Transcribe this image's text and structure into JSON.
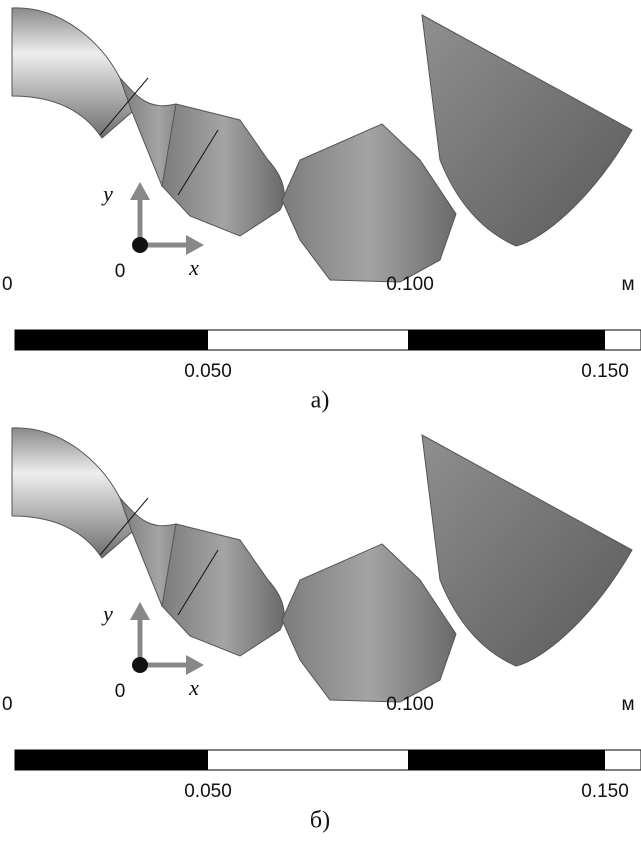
{
  "panels": [
    {
      "axes": {
        "y": "y",
        "origin": "0",
        "x": "x"
      },
      "scale": {
        "start": "0",
        "mid": "0.100",
        "unit": "м",
        "low": "0.050",
        "high": "0.150"
      },
      "caption": "а)"
    },
    {
      "axes": {
        "y": "y",
        "origin": "0",
        "x": "x"
      },
      "scale": {
        "start": "0",
        "mid": "0.100",
        "unit": "м",
        "low": "0.050",
        "high": "0.150"
      },
      "caption": "б)"
    }
  ]
}
